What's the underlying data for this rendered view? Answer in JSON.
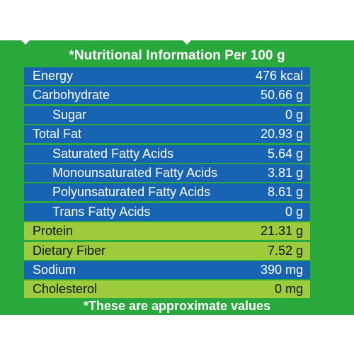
{
  "colors": {
    "panel_green": "#29a83b",
    "row_blue": "#1664b3",
    "row_lime": "#9ccb3c",
    "text_white": "#ffffff",
    "text_dark": "#111111"
  },
  "title": "*Nutritional Information Per 100 g",
  "rows": [
    {
      "label": "Energy",
      "value": "476 kcal",
      "style": "blue",
      "indent": false
    },
    {
      "label": "Carbohydrate",
      "value": "50.66 g",
      "style": "blue",
      "indent": false
    },
    {
      "label": "Sugar",
      "value": "0 g",
      "style": "blue",
      "indent": true
    },
    {
      "label": "Total Fat",
      "value": "20.93 g",
      "style": "blue",
      "indent": false
    },
    {
      "label": "Saturated Fatty Acids",
      "value": "5.64 g",
      "style": "blue",
      "indent": true
    },
    {
      "label": "Monounsaturated Fatty Acids",
      "value": "3.81 g",
      "style": "blue",
      "indent": true
    },
    {
      "label": "Polyunsaturated Fatty Acids",
      "value": "8.61 g",
      "style": "blue",
      "indent": true
    },
    {
      "label": "Trans Fatty Acids",
      "value": "0 g",
      "style": "blue",
      "indent": true
    },
    {
      "label": "Protein",
      "value": "21.31 g",
      "style": "lime",
      "indent": false
    },
    {
      "label": "Dietary Fiber",
      "value": "7.52 g",
      "style": "lime",
      "indent": false
    },
    {
      "label": "Sodium",
      "value": "390 mg",
      "style": "blue",
      "indent": false
    },
    {
      "label": "Cholesterol",
      "value": "0 mg",
      "style": "lime",
      "indent": false
    }
  ],
  "footer": "*These are approximate values"
}
